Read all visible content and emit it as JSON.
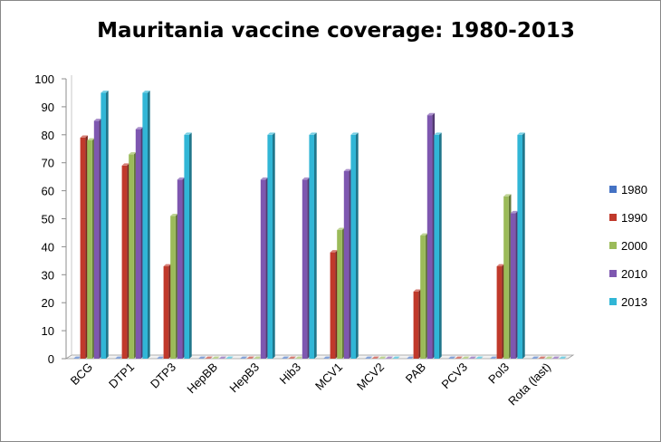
{
  "chart_data": {
    "type": "bar",
    "title": "Mauritania vaccine coverage: 1980-2013",
    "xlabel": "",
    "ylabel": "",
    "ylim": [
      0,
      100
    ],
    "yticks": [
      "0",
      "10",
      "20",
      "30",
      "40",
      "50",
      "60",
      "70",
      "80",
      "90",
      "100"
    ],
    "categories": [
      "BCG",
      "DTP1",
      "DTP3",
      "HepBB",
      "HepB3",
      "Hib3",
      "MCV1",
      "MCV2",
      "PAB",
      "PCV3",
      "Pol3",
      "Rota (last)"
    ],
    "series": [
      {
        "name": "1980",
        "color": "#4472C4",
        "values": [
          0,
          0,
          0,
          0,
          0,
          0,
          0,
          0,
          0,
          0,
          0,
          0
        ]
      },
      {
        "name": "1990",
        "color": "#C0392B",
        "values": [
          79,
          69,
          33,
          0,
          0,
          0,
          38,
          0,
          24,
          0,
          33,
          0
        ]
      },
      {
        "name": "2000",
        "color": "#9BBB59",
        "values": [
          78,
          73,
          51,
          0,
          0,
          0,
          46,
          0,
          44,
          0,
          58,
          0
        ]
      },
      {
        "name": "2010",
        "color": "#7E57B0",
        "values": [
          85,
          82,
          64,
          0,
          64,
          64,
          67,
          0,
          87,
          0,
          52,
          0
        ]
      },
      {
        "name": "2013",
        "color": "#31B6D6",
        "values": [
          95,
          95,
          80,
          0,
          80,
          80,
          80,
          0,
          80,
          0,
          80,
          0
        ]
      }
    ],
    "legend_position": "right",
    "grid": false
  }
}
